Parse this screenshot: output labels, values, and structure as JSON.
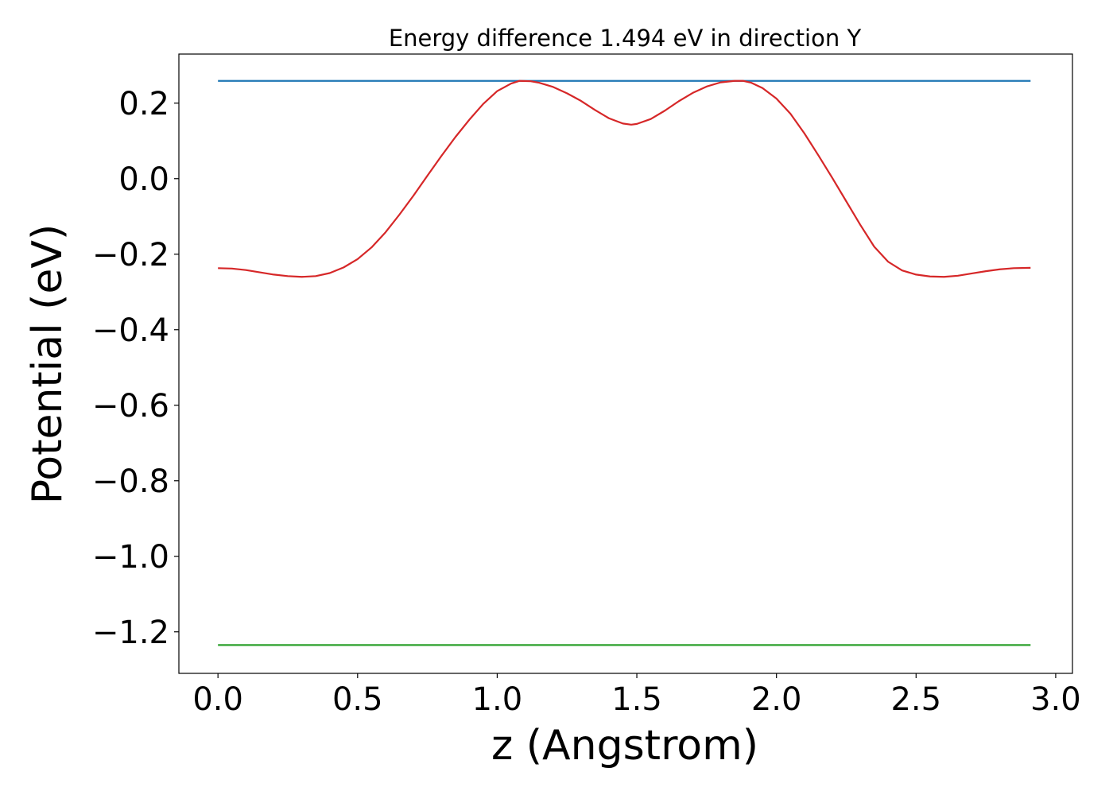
{
  "chart_data": {
    "type": "line",
    "title": "Energy difference 1.494 eV in direction Y",
    "xlabel": "z (Angstrom)",
    "ylabel": "Potential (eV)",
    "xlim": [
      -0.14,
      3.06
    ],
    "ylim": [
      -1.31,
      0.33
    ],
    "x_ticks": [
      0.0,
      0.5,
      1.0,
      1.5,
      2.0,
      2.5,
      3.0
    ],
    "x_tick_labels": [
      "0.0",
      "0.5",
      "1.0",
      "1.5",
      "2.0",
      "2.5",
      "3.0"
    ],
    "y_ticks": [
      0.2,
      0.0,
      -0.2,
      -0.4,
      -0.6,
      -0.8,
      -1.0,
      -1.2
    ],
    "y_tick_labels": [
      "0.2",
      "0.0",
      "−0.2",
      "−0.4",
      "−0.6",
      "−0.8",
      "−1.0",
      "−1.2"
    ],
    "grid": false,
    "series": [
      {
        "color": "#1f77b4",
        "x": [
          0.0,
          2.91
        ],
        "y": [
          0.259,
          0.259
        ]
      },
      {
        "color": "#2ca02c",
        "x": [
          0.0,
          2.91
        ],
        "y": [
          -1.235,
          -1.235
        ]
      },
      {
        "color": "#d62728",
        "x": [
          0.0,
          0.05,
          0.1,
          0.15,
          0.2,
          0.25,
          0.3,
          0.35,
          0.4,
          0.45,
          0.5,
          0.55,
          0.6,
          0.65,
          0.7,
          0.75,
          0.8,
          0.85,
          0.9,
          0.95,
          1.0,
          1.05,
          1.08,
          1.12,
          1.15,
          1.2,
          1.25,
          1.3,
          1.35,
          1.4,
          1.45,
          1.48,
          1.5,
          1.55,
          1.6,
          1.65,
          1.7,
          1.75,
          1.8,
          1.85,
          1.88,
          1.91,
          1.95,
          2.0,
          2.05,
          2.1,
          2.15,
          2.2,
          2.25,
          2.3,
          2.35,
          2.4,
          2.45,
          2.5,
          2.55,
          2.6,
          2.65,
          2.7,
          2.75,
          2.8,
          2.85,
          2.91
        ],
        "y": [
          -0.237,
          -0.238,
          -0.242,
          -0.248,
          -0.254,
          -0.258,
          -0.26,
          -0.258,
          -0.25,
          -0.235,
          -0.213,
          -0.182,
          -0.142,
          -0.095,
          -0.045,
          0.008,
          0.06,
          0.11,
          0.156,
          0.198,
          0.232,
          0.252,
          0.259,
          0.258,
          0.254,
          0.243,
          0.226,
          0.206,
          0.182,
          0.16,
          0.146,
          0.143,
          0.145,
          0.158,
          0.18,
          0.205,
          0.227,
          0.244,
          0.255,
          0.259,
          0.259,
          0.254,
          0.24,
          0.212,
          0.172,
          0.12,
          0.062,
          0.002,
          -0.06,
          -0.122,
          -0.18,
          -0.22,
          -0.243,
          -0.254,
          -0.259,
          -0.26,
          -0.257,
          -0.251,
          -0.245,
          -0.24,
          -0.237,
          -0.236
        ]
      }
    ]
  }
}
